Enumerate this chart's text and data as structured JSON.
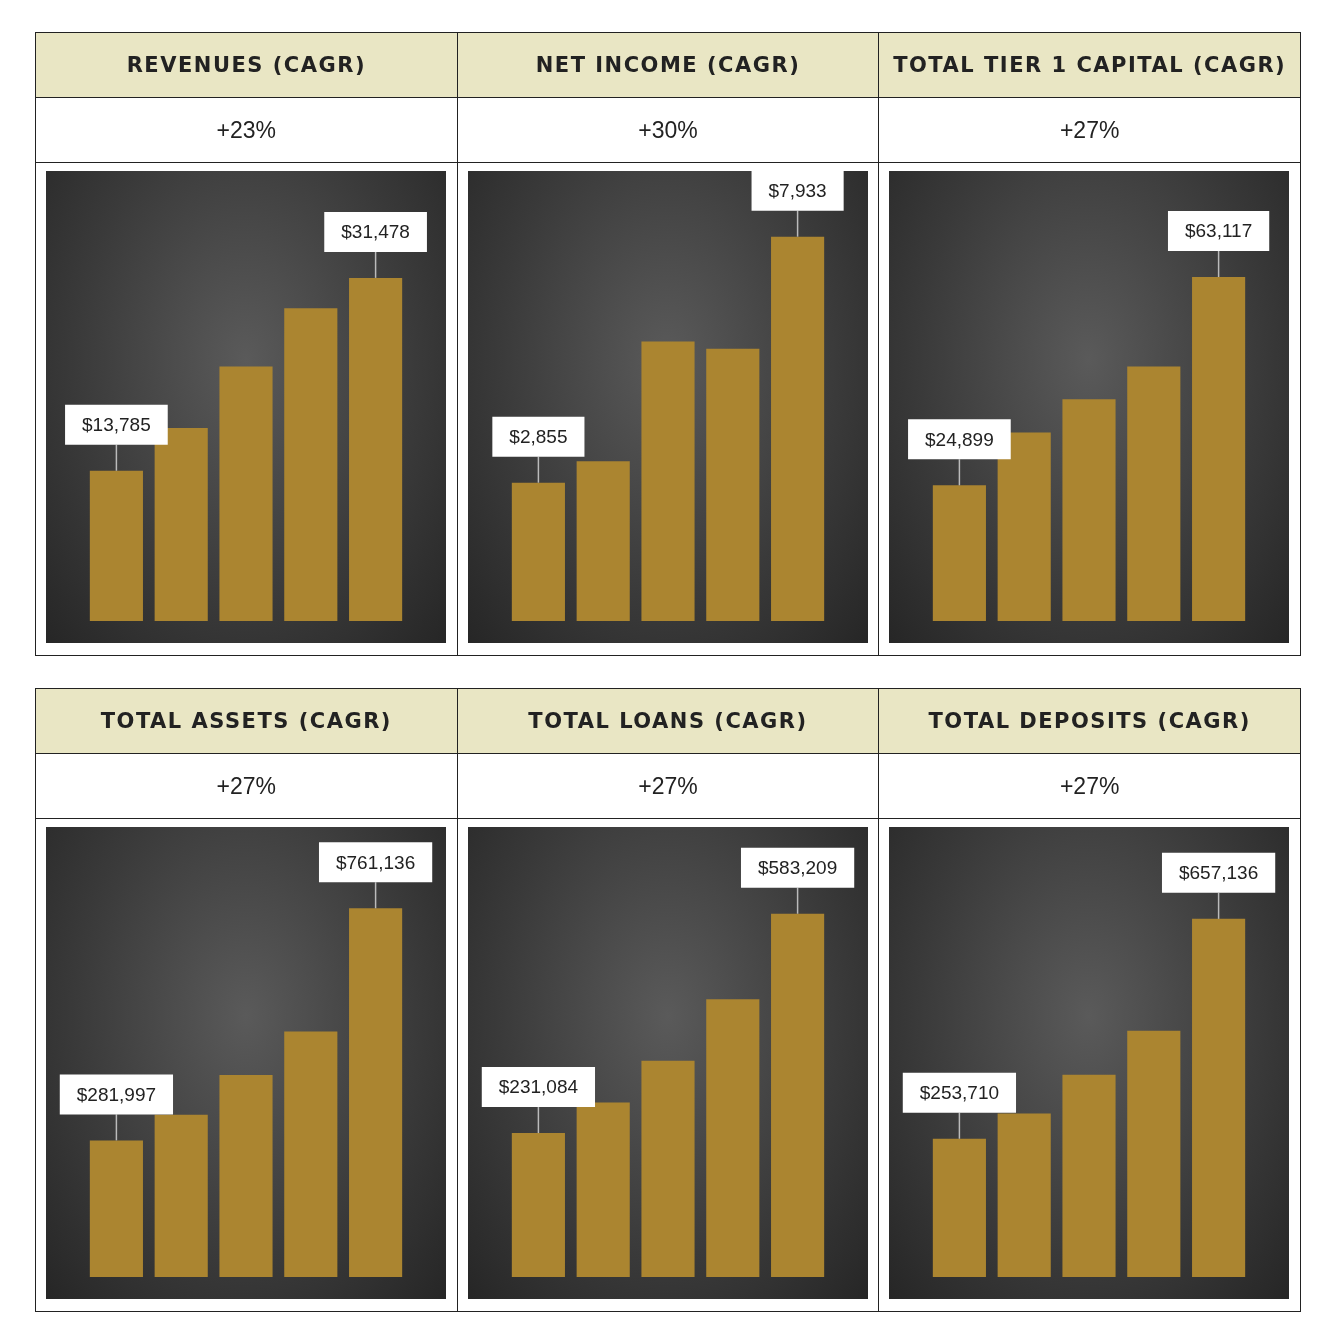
{
  "chart_data": [
    {
      "type": "bar",
      "title": "REVENUES (CAGR)",
      "subtitle": "+23%",
      "categories": [
        null,
        null,
        null,
        null,
        null
      ],
      "values": [
        13785,
        17700,
        23350,
        28700,
        31478
      ],
      "color": "#ab8530",
      "value_labels": [
        "$13,785",
        null,
        null,
        null,
        "$31,478"
      ],
      "tick_labels": false
    },
    {
      "type": "bar",
      "title": "NET INCOME (CAGR)",
      "subtitle": "+30%",
      "categories": [
        null,
        null,
        null,
        null,
        null
      ],
      "values": [
        2855,
        3300,
        5770,
        5620,
        7933
      ],
      "color": "#ab8530",
      "value_labels": [
        "$2,855",
        null,
        null,
        null,
        "$7,933"
      ],
      "tick_labels": false
    },
    {
      "type": "bar",
      "title": "TOTAL TIER 1 CAPITAL (CAGR)",
      "subtitle": "+27%",
      "categories": [
        null,
        null,
        null,
        null,
        null
      ],
      "values": [
        24899,
        34600,
        40700,
        46700,
        63117
      ],
      "color": "#ab8530",
      "value_labels": [
        "$24,899",
        null,
        null,
        null,
        "$63,117"
      ],
      "tick_labels": false
    },
    {
      "type": "bar",
      "title": "TOTAL ASSETS (CAGR)",
      "subtitle": "+27%",
      "categories": [
        null,
        null,
        null,
        null,
        null
      ],
      "values": [
        281997,
        335000,
        417000,
        507000,
        761136
      ],
      "color": "#ab8530",
      "value_labels": [
        "$281,997",
        null,
        null,
        null,
        "$761,136"
      ],
      "tick_labels": false
    },
    {
      "type": "bar",
      "title": "TOTAL LOANS (CAGR)",
      "subtitle": "+27%",
      "categories": [
        null,
        null,
        null,
        null,
        null
      ],
      "values": [
        231084,
        280000,
        347000,
        446000,
        583209
      ],
      "color": "#ab8530",
      "value_labels": [
        "$231,084",
        null,
        null,
        null,
        "$583,209"
      ],
      "tick_labels": false
    },
    {
      "type": "bar",
      "title": "TOTAL DEPOSITS (CAGR)",
      "subtitle": "+27%",
      "categories": [
        null,
        null,
        null,
        null,
        null
      ],
      "values": [
        253710,
        300000,
        371000,
        452000,
        657136
      ],
      "color": "#ab8530",
      "value_labels": [
        "$253,710",
        null,
        null,
        null,
        "$657,136"
      ],
      "tick_labels": false
    }
  ]
}
